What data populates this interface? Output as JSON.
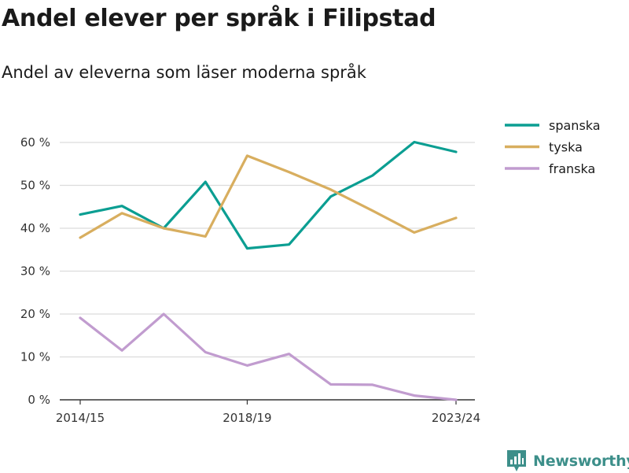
{
  "header": {
    "title": "Andel elever per språk i Filipstad",
    "subtitle": "Andel av eleverna som läser moderna språk"
  },
  "brand": {
    "name": "Newsworthy",
    "color": "#3d8f8a",
    "icon": "newsworthy-logo-icon"
  },
  "chart_data": {
    "type": "line",
    "x": [
      "2014/15",
      "2015/16",
      "2016/17",
      "2017/18",
      "2018/19",
      "2019/20",
      "2020/21",
      "2021/22",
      "2022/23",
      "2023/24"
    ],
    "x_tick_labels": [
      "2014/15",
      "2018/19",
      "2023/24"
    ],
    "y_tick_labels": [
      "0 %",
      "10 %",
      "20 %",
      "30 %",
      "40 %",
      "50 %",
      "60 %"
    ],
    "y_ticks": [
      0,
      10,
      20,
      30,
      40,
      50,
      60
    ],
    "ylim": [
      0,
      65
    ],
    "grid": true,
    "legend_position": "top-right",
    "series": [
      {
        "name": "spanska",
        "color": "#0b9e92",
        "values": [
          43.2,
          45.2,
          40.0,
          50.8,
          35.3,
          36.2,
          47.4,
          52.3,
          60.1,
          57.8
        ]
      },
      {
        "name": "tyska",
        "color": "#d8ae5f",
        "values": [
          37.8,
          43.5,
          40.0,
          38.1,
          56.9,
          53.1,
          49.0,
          44.1,
          39.0,
          42.4
        ]
      },
      {
        "name": "franska",
        "color": "#c19ccf",
        "values": [
          19.1,
          11.5,
          20.0,
          11.1,
          8.0,
          10.7,
          3.6,
          3.5,
          1.0,
          0.0
        ]
      }
    ]
  }
}
